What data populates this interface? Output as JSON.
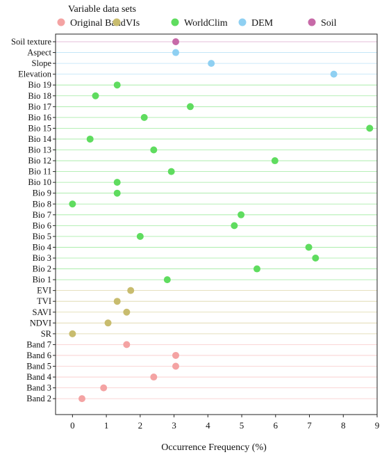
{
  "chart_data": {
    "type": "scatter",
    "legend": {
      "title": "Variable data sets",
      "placement": "top",
      "entries": [
        {
          "name": "Original Band",
          "color": "#f4a3a3"
        },
        {
          "name": "VIs",
          "color": "#c8bc6e"
        },
        {
          "name": "WorldClim",
          "color": "#5fdc5f"
        },
        {
          "name": "DEM",
          "color": "#8fd0f2"
        },
        {
          "name": "Soil",
          "color": "#c76aa8"
        }
      ]
    },
    "xlabel": "Occurrence Frequency (%)",
    "ylabel": "",
    "xlim": [
      -0.5,
      9
    ],
    "xticks": [
      0,
      1,
      2,
      3,
      4,
      5,
      6,
      7,
      8,
      9
    ],
    "grid": false,
    "categories": [
      "Soil texture",
      "Aspect",
      "Slope",
      "Elevation",
      "Bio 19",
      "Bio 18",
      "Bio 17",
      "Bio 16",
      "Bio 15",
      "Bio 14",
      "Bio 13",
      "Bio 12",
      "Bio 11",
      "Bio 10",
      "Bio 9",
      "Bio 8",
      "Bio 7",
      "Bio 6",
      "Bio 5",
      "Bio 4",
      "Bio 3",
      "Bio 2",
      "Bio 1",
      "EVI",
      "TVI",
      "SAVI",
      "NDVI",
      "SR",
      "Band 7",
      "Band 6",
      "Band 5",
      "Band 4",
      "Band 3",
      "Band 2"
    ],
    "series": [
      {
        "name": "Original Band",
        "color": "#f4a3a3",
        "points": [
          [
            "Band 7",
            1.6
          ],
          [
            "Band 6",
            3.05
          ],
          [
            "Band 5",
            3.05
          ],
          [
            "Band 4",
            2.4
          ],
          [
            "Band 3",
            0.92
          ],
          [
            "Band 2",
            0.28
          ]
        ]
      },
      {
        "name": "VIs",
        "color": "#c8bc6e",
        "points": [
          [
            "EVI",
            1.72
          ],
          [
            "TVI",
            1.32
          ],
          [
            "SAVI",
            1.6
          ],
          [
            "NDVI",
            1.05
          ],
          [
            "SR",
            0.0
          ]
        ]
      },
      {
        "name": "WorldClim",
        "color": "#5fdc5f",
        "points": [
          [
            "Bio 19",
            1.32
          ],
          [
            "Bio 18",
            0.68
          ],
          [
            "Bio 17",
            3.48
          ],
          [
            "Bio 16",
            2.12
          ],
          [
            "Bio 15",
            8.78
          ],
          [
            "Bio 14",
            0.52
          ],
          [
            "Bio 13",
            2.4
          ],
          [
            "Bio 12",
            5.98
          ],
          [
            "Bio 11",
            2.92
          ],
          [
            "Bio 10",
            1.32
          ],
          [
            "Bio 9",
            1.32
          ],
          [
            "Bio 8",
            0.0
          ],
          [
            "Bio 7",
            4.98
          ],
          [
            "Bio 6",
            4.78
          ],
          [
            "Bio 5",
            2.0
          ],
          [
            "Bio 4",
            6.98
          ],
          [
            "Bio 3",
            7.18
          ],
          [
            "Bio 2",
            5.45
          ],
          [
            "Bio 1",
            2.8
          ]
        ]
      },
      {
        "name": "DEM",
        "color": "#8fd0f2",
        "points": [
          [
            "Aspect",
            3.05
          ],
          [
            "Slope",
            4.1
          ],
          [
            "Elevation",
            7.72
          ]
        ]
      },
      {
        "name": "Soil",
        "color": "#c76aa8",
        "points": [
          [
            "Soil texture",
            3.05
          ]
        ]
      }
    ]
  }
}
